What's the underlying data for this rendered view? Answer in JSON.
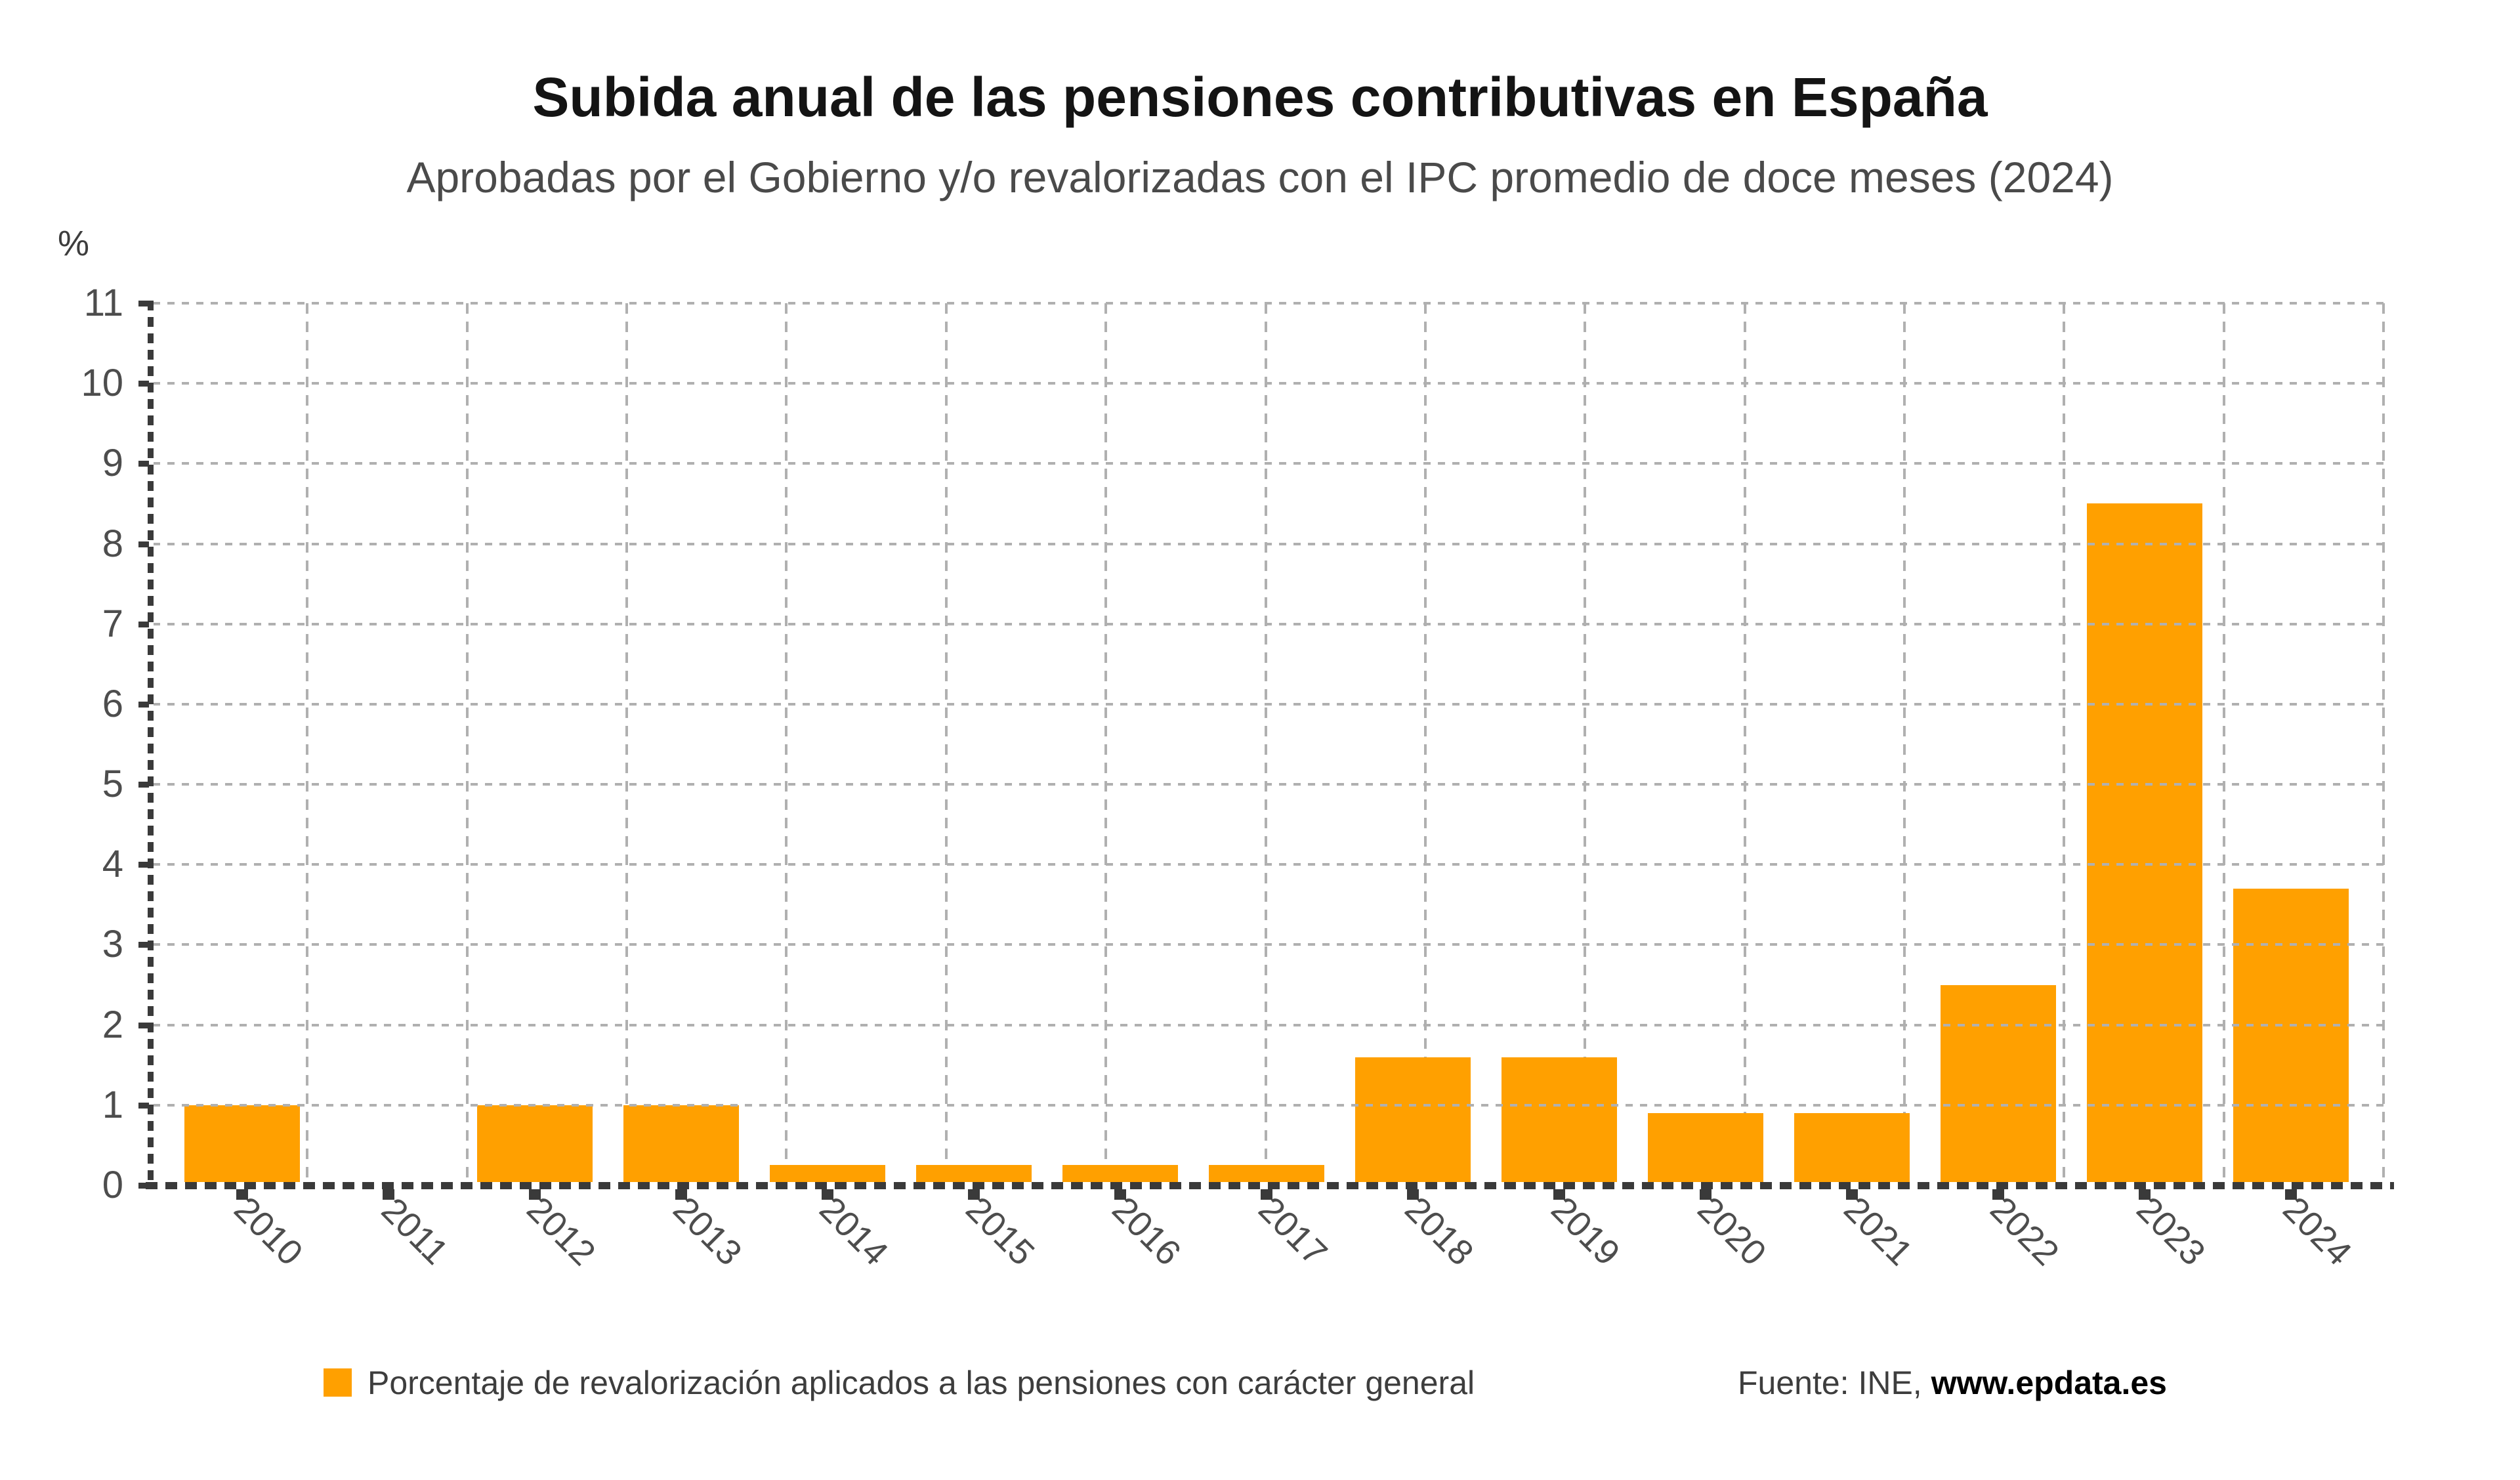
{
  "title": "Subida anual de las pensiones contributivas en España",
  "subtitle": "Aprobadas por el Gobierno y/o revalorizadas con el IPC promedio de doce meses (2024)",
  "chart_data": {
    "type": "bar",
    "title": "Subida anual de las pensiones contributivas en España",
    "subtitle": "Aprobadas por el Gobierno y/o revalorizadas con el IPC promedio de doce meses (2024)",
    "xlabel": "",
    "ylabel": "%",
    "categories": [
      "2010",
      "2011",
      "2012",
      "2013",
      "2014",
      "2015",
      "2016",
      "2017",
      "2018",
      "2019",
      "2020",
      "2021",
      "2022",
      "2023",
      "2024"
    ],
    "values": [
      1.0,
      0.0,
      1.0,
      1.0,
      0.25,
      0.25,
      0.25,
      0.25,
      1.6,
      1.6,
      0.9,
      0.9,
      2.5,
      8.5,
      3.7
    ],
    "series_name": "Porcentaje de revalorización aplicados a las pensiones con carácter general",
    "ylim": [
      0,
      11
    ],
    "ytick_step": 1,
    "grid": true,
    "legend_position": "bottom",
    "bar_color": "#FFA000"
  },
  "legend": {
    "label": "Porcentaje de revalorización aplicados a las pensiones con carácter general",
    "swatch_color": "#FFA000"
  },
  "source": {
    "prefix": "Fuente: INE,",
    "link": "www.epdata.es"
  },
  "colors": {
    "bar": "#FFA000",
    "grid": "#b0b0b0",
    "axis": "#3a3a3a",
    "tick_label": "#4d4d4d",
    "title": "#141414",
    "subtitle": "#4a4a4a",
    "legend_text": "#3d3d3d"
  }
}
